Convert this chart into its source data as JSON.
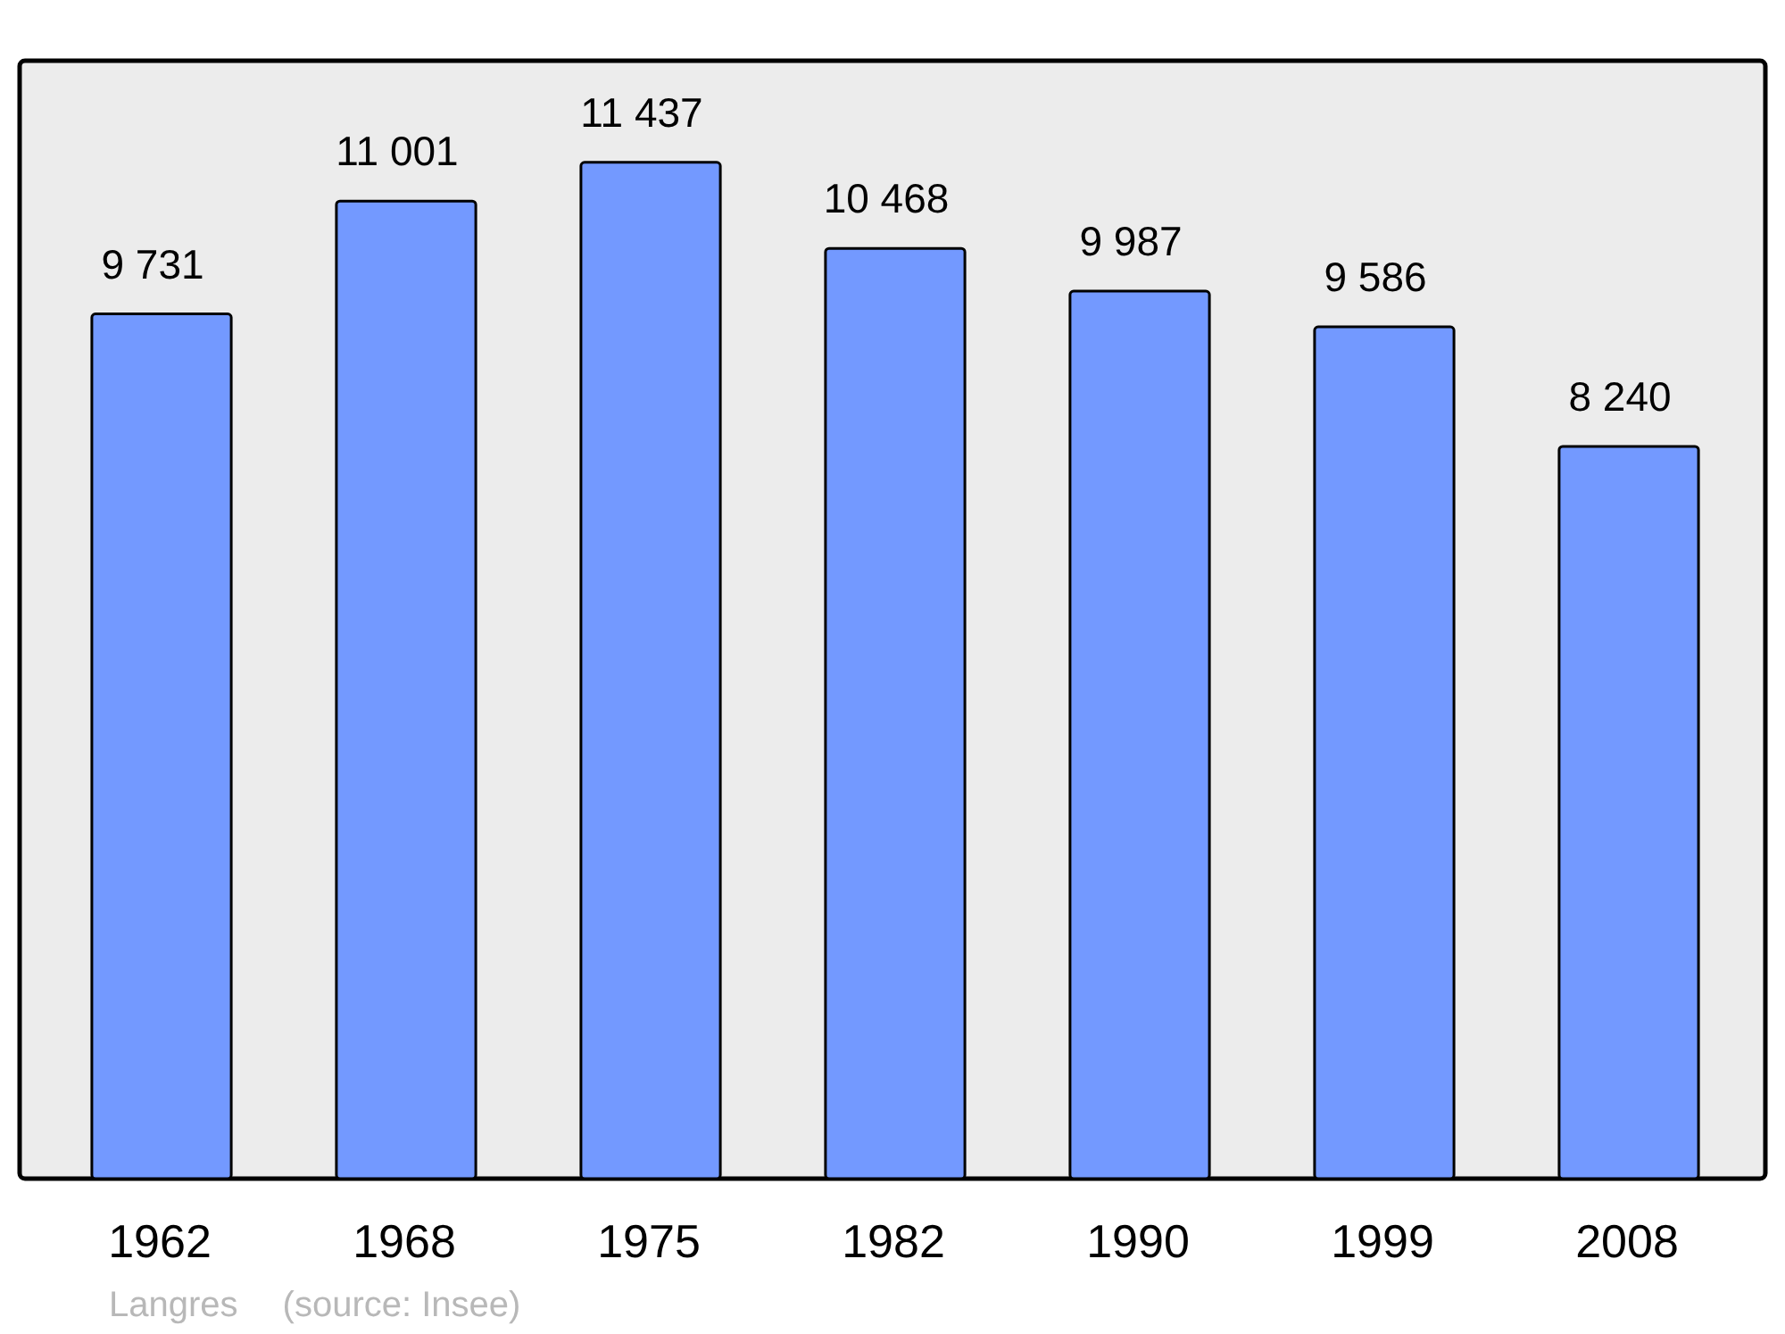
{
  "chart_data": {
    "type": "bar",
    "categories": [
      "1962",
      "1968",
      "1975",
      "1982",
      "1990",
      "1999",
      "2008"
    ],
    "values": [
      9731,
      11001,
      11437,
      10468,
      9987,
      9586,
      8240
    ],
    "value_labels": [
      "9 731",
      "11 001",
      "11 437",
      "10 468",
      "9 987",
      "9 586",
      "8 240"
    ],
    "color": "#7399ff",
    "annotations": [
      "Langres",
      "(source: Insee)"
    ]
  }
}
